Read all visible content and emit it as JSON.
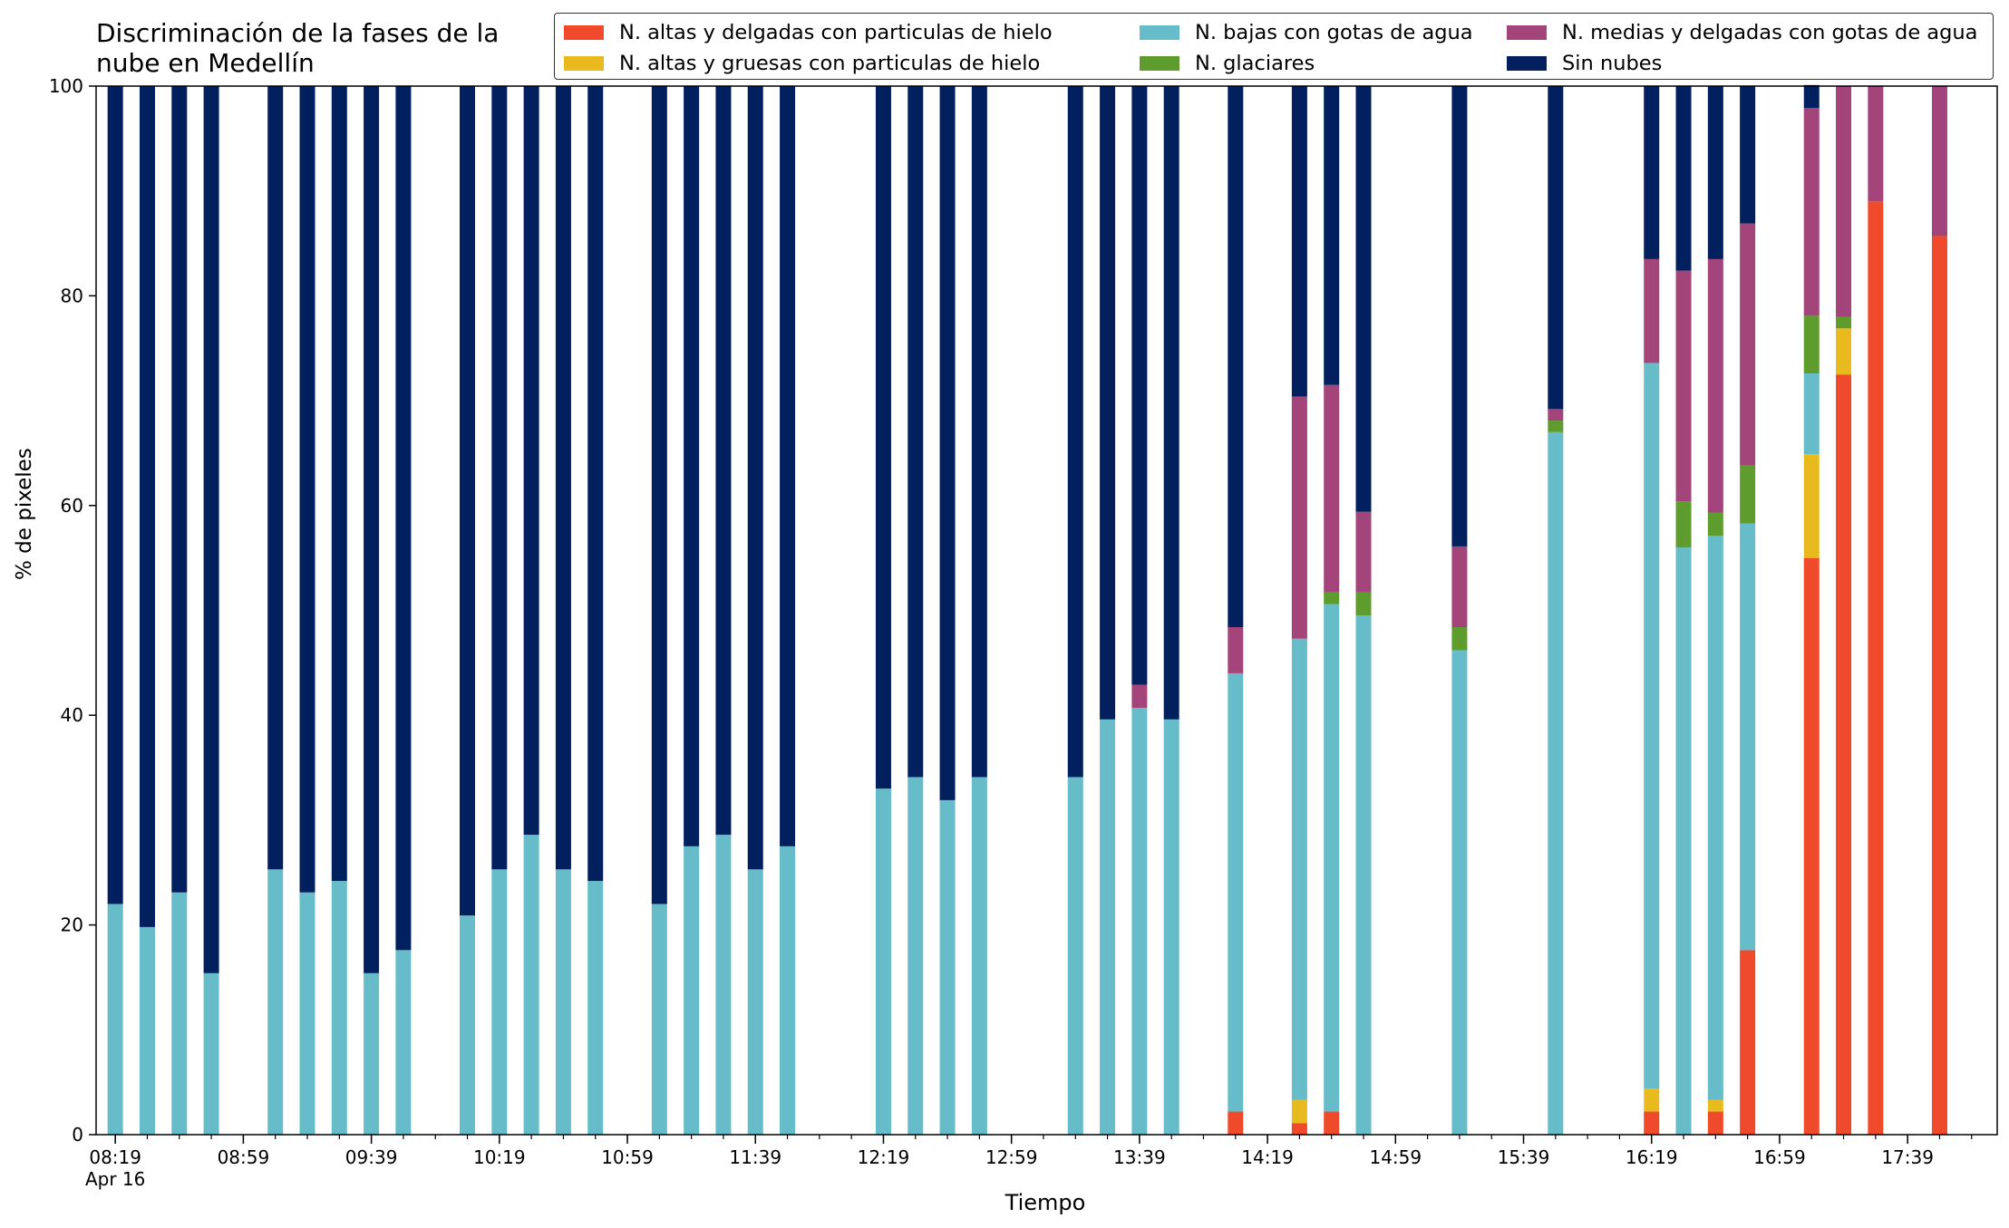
{
  "chart_data": {
    "type": "bar",
    "stacked": true,
    "title": "Discriminación de la fases de la\nnube en Medellín",
    "xlabel": "Tiempo",
    "ylabel": "% de pixeles",
    "ylim": [
      0,
      100
    ],
    "yticks": [
      "0",
      "20",
      "40",
      "60",
      "80",
      "100"
    ],
    "xlim": [
      "08:13",
      "18:07"
    ],
    "xticks": [
      {
        "time": "08:19",
        "label": "08:19",
        "sublabel": "Apr 16"
      },
      {
        "time": "08:59",
        "label": "08:59"
      },
      {
        "time": "09:39",
        "label": "09:39"
      },
      {
        "time": "10:19",
        "label": "10:19"
      },
      {
        "time": "10:59",
        "label": "10:59"
      },
      {
        "time": "11:39",
        "label": "11:39"
      },
      {
        "time": "12:19",
        "label": "12:19"
      },
      {
        "time": "12:59",
        "label": "12:59"
      },
      {
        "time": "13:39",
        "label": "13:39"
      },
      {
        "time": "14:19",
        "label": "14:19"
      },
      {
        "time": "14:59",
        "label": "14:59"
      },
      {
        "time": "15:39",
        "label": "15:39"
      },
      {
        "time": "16:19",
        "label": "16:19"
      },
      {
        "time": "16:59",
        "label": "16:59"
      },
      {
        "time": "17:39",
        "label": "17:39"
      }
    ],
    "x": [
      "08:19",
      "08:29",
      "08:39",
      "08:49",
      "09:09",
      "09:19",
      "09:29",
      "09:39",
      "09:49",
      "10:09",
      "10:19",
      "10:29",
      "10:39",
      "10:49",
      "11:09",
      "11:19",
      "11:29",
      "11:39",
      "11:49",
      "12:19",
      "12:29",
      "12:39",
      "12:49",
      "13:19",
      "13:29",
      "13:39",
      "13:49",
      "14:09",
      "14:29",
      "14:39",
      "14:49",
      "15:19",
      "15:49",
      "16:19",
      "16:29",
      "16:39",
      "16:49",
      "17:09",
      "17:19",
      "17:29",
      "17:49"
    ],
    "legend_position": "top-right",
    "grid": false,
    "series": [
      {
        "name": "N. altas y delgadas con particulas de hielo",
        "color": "#ee4a2b",
        "values": [
          0,
          0,
          0,
          0,
          0,
          0,
          0,
          0,
          0,
          0,
          0,
          0,
          0,
          0,
          0,
          0,
          0,
          0,
          0,
          0,
          0,
          0,
          0,
          0,
          0,
          0,
          0,
          2.2,
          1.1,
          2.2,
          0,
          0,
          0,
          2.2,
          0,
          2.2,
          17.6,
          55,
          72.5,
          89,
          85.7
        ]
      },
      {
        "name": "N. altas y gruesas con particulas de hielo",
        "color": "#e8ba1d",
        "values": [
          0,
          0,
          0,
          0,
          0,
          0,
          0,
          0,
          0,
          0,
          0,
          0,
          0,
          0,
          0,
          0,
          0,
          0,
          0,
          0,
          0,
          0,
          0,
          0,
          0,
          0,
          0,
          0,
          2.2,
          0,
          0,
          0,
          0,
          2.2,
          0,
          1.1,
          0,
          9.9,
          4.4,
          0,
          0
        ]
      },
      {
        "name": "N. bajas con gotas de agua",
        "color": "#67bcc9",
        "values": [
          22,
          19.8,
          23.1,
          15.4,
          25.3,
          23.1,
          24.2,
          15.4,
          17.6,
          20.9,
          25.3,
          28.6,
          25.3,
          24.2,
          22,
          27.5,
          28.6,
          25.3,
          27.5,
          33,
          34.1,
          31.9,
          34.1,
          34.1,
          39.6,
          40.7,
          39.6,
          41.8,
          44,
          48.4,
          49.5,
          46.2,
          67,
          69.2,
          56,
          53.8,
          40.7,
          7.7,
          0,
          0,
          0
        ]
      },
      {
        "name": "N. glaciares",
        "color": "#5e9c2d",
        "values": [
          0,
          0,
          0,
          0,
          0,
          0,
          0,
          0,
          0,
          0,
          0,
          0,
          0,
          0,
          0,
          0,
          0,
          0,
          0,
          0,
          0,
          0,
          0,
          0,
          0,
          0,
          0,
          0,
          0,
          1.1,
          2.2,
          2.2,
          1.1,
          0,
          4.4,
          2.2,
          5.5,
          5.5,
          1.1,
          0,
          0
        ]
      },
      {
        "name": "N. medias y delgadas con gotas de agua",
        "color": "#a3457a",
        "values": [
          0,
          0,
          0,
          0,
          0,
          0,
          0,
          0,
          0,
          0,
          0,
          0,
          0,
          0,
          0,
          0,
          0,
          0,
          0,
          0,
          0,
          0,
          0,
          0,
          0,
          2.2,
          0,
          4.4,
          23.1,
          19.8,
          7.7,
          7.7,
          1.1,
          9.9,
          22,
          24.2,
          23.1,
          19.8,
          22,
          11,
          14.3
        ]
      },
      {
        "name": "Sin nubes",
        "color": "#03205e",
        "values": [
          78,
          80.2,
          76.9,
          84.6,
          74.7,
          76.9,
          75.8,
          84.6,
          82.4,
          79.1,
          74.7,
          71.4,
          74.7,
          75.8,
          78,
          72.5,
          71.4,
          74.7,
          72.5,
          67,
          65.9,
          68.1,
          65.9,
          65.9,
          60.4,
          57.1,
          60.4,
          51.6,
          29.6,
          28.5,
          40.6,
          43.9,
          30.8,
          16.5,
          17.6,
          16.5,
          13.1,
          2.2,
          0,
          0,
          0
        ]
      }
    ]
  }
}
